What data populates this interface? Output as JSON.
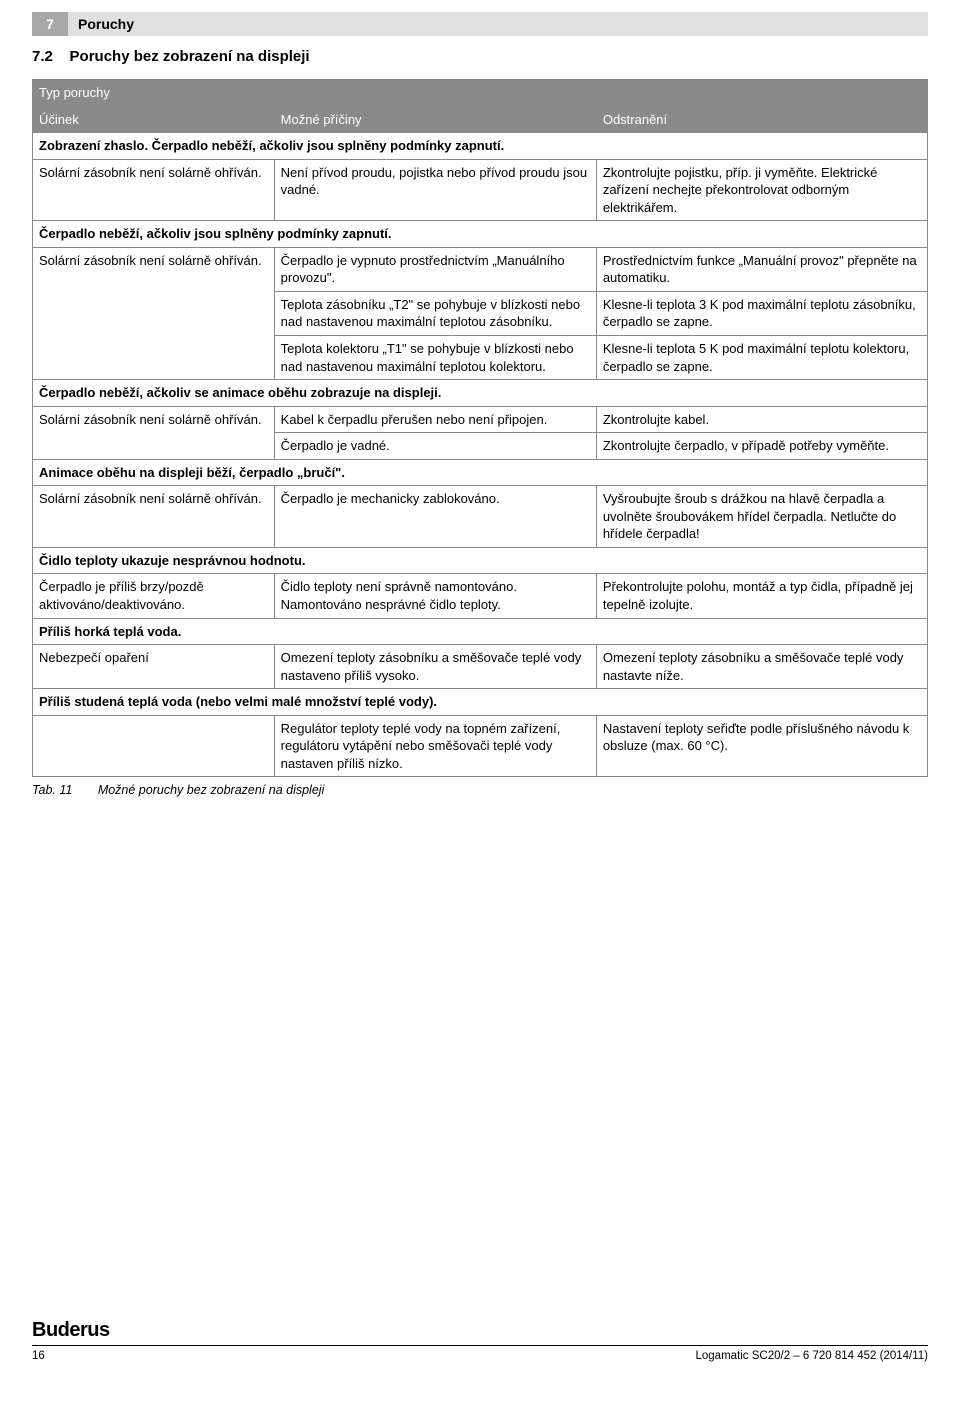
{
  "chapter": {
    "number": "7",
    "title": "Poruchy"
  },
  "section": {
    "number": "7.2",
    "title": "Poruchy bez zobrazení na displeji"
  },
  "header": {
    "col0_a": "Typ poruchy",
    "col0_b": "Účinek",
    "col1": "Možné příčiny",
    "col2": "Odstranění"
  },
  "groups": [
    {
      "title": "Zobrazení zhaslo. Čerpadlo neběží, ačkoliv jsou splněny podmínky zapnutí.",
      "rows": [
        {
          "c0": "Solární zásobník není solárně ohříván.",
          "c1": "Není přívod proudu, pojistka nebo přívod proudu jsou vadné.",
          "c2": "Zkontrolujte pojistku, příp. ji vyměňte. Elektrické zařízení nechejte překontrolovat odborným elektrikářem."
        }
      ]
    },
    {
      "title": "Čerpadlo neběží, ačkoliv jsou splněny podmínky zapnutí.",
      "rows": [
        {
          "c0": "Solární zásobník není solárně ohříván.",
          "c0rowspan": 3,
          "c1": "Čerpadlo je vypnuto prostřednictvím „Manuálního provozu\".",
          "c2": "Prostřednictvím funkce „Manuální provoz\" přepněte na automatiku."
        },
        {
          "c1": "Teplota zásobníku „T2\" se pohybuje v blízkosti nebo nad nastavenou maximální teplotou zásobníku.",
          "c2": "Klesne-li teplota 3 K pod maximální teplotu zásobníku, čerpadlo se zapne."
        },
        {
          "c1": "Teplota kolektoru „T1\" se pohybuje v blízkosti nebo nad nastavenou maximální teplotou kolektoru.",
          "c2": "Klesne-li teplota 5 K pod maximální teplotu kolektoru, čerpadlo se zapne."
        }
      ]
    },
    {
      "title": "Čerpadlo neběží, ačkoliv se animace oběhu zobrazuje na displeji.",
      "rows": [
        {
          "c0": "Solární zásobník není solárně ohříván.",
          "c0rowspan": 2,
          "c1": "Kabel k čerpadlu přerušen nebo není připojen.",
          "c2": "Zkontrolujte kabel."
        },
        {
          "c1": "Čerpadlo je vadné.",
          "c2": "Zkontrolujte čerpadlo, v případě potřeby vyměňte."
        }
      ]
    },
    {
      "title": "Animace oběhu na displeji běží, čerpadlo „bručí\".",
      "rows": [
        {
          "c0": "Solární zásobník není solárně ohříván.",
          "c1": "Čerpadlo je mechanicky zablokováno.",
          "c2": "Vyšroubujte šroub s drážkou na hlavě čerpadla a uvolněte šroubovákem hřídel čerpadla. Netlučte do hřídele čerpadla!"
        }
      ]
    },
    {
      "title": "Čidlo teploty ukazuje nesprávnou hodnotu.",
      "rows": [
        {
          "c0": "Čerpadlo je příliš brzy/pozdě aktivováno/deaktivováno.",
          "c1": "Čidlo teploty není správně namontováno. Namontováno nesprávné čidlo teploty.",
          "c2": "Překontrolujte polohu, montáž a typ čidla, případně jej tepelně izolujte."
        }
      ]
    },
    {
      "title": "Příliš horká teplá voda.",
      "rows": [
        {
          "c0": "Nebezpečí opaření",
          "c1": "Omezení teploty zásobníku a směšovače teplé vody nastaveno příliš vysoko.",
          "c2": "Omezení teploty zásobníku a směšovače teplé vody nastavte níže."
        }
      ]
    },
    {
      "title": "Příliš studená teplá voda (nebo velmi malé množství teplé vody).",
      "rows": [
        {
          "c0": "",
          "c1": "Regulátor teploty teplé vody na topném zařízení, regulátoru vytápění nebo směšovači teplé vody nastaven příliš nízko.",
          "c2": "Nastavení teploty seřiďte podle příslušného návodu k obsluze (max. 60 °C)."
        }
      ]
    }
  ],
  "caption": {
    "num": "Tab. 11",
    "text": "Možné poruchy bez zobrazení na displeji"
  },
  "footer": {
    "logo": "Buderus",
    "pageNum": "16",
    "docRef": "Logamatic SC20/2 – 6 720 814 452 (2014/11)"
  }
}
